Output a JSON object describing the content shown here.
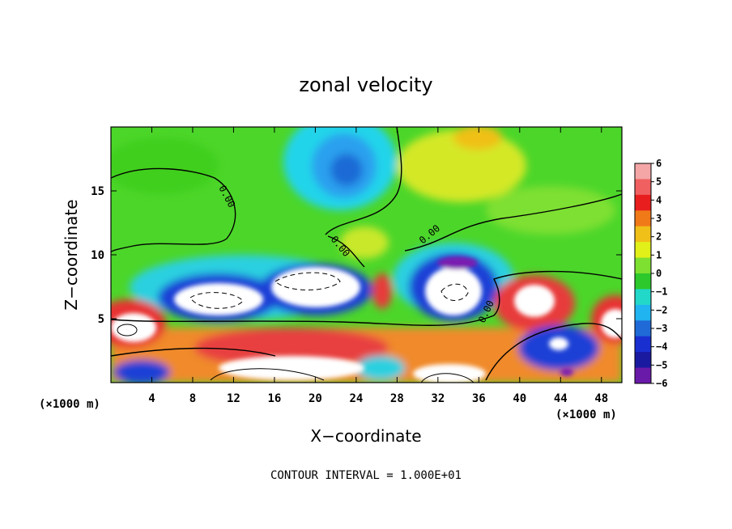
{
  "chart_data": {
    "type": "heatmap",
    "title": "zonal velocity",
    "xlabel": "X−coordinate",
    "ylabel": "Z−coordinate",
    "x_unit_left": "(×1000 m)",
    "x_unit_right": "(×1000 m)",
    "xlim": [
      0,
      50
    ],
    "ylim": [
      0,
      20
    ],
    "x_ticks": [
      4,
      8,
      12,
      16,
      20,
      24,
      28,
      32,
      36,
      40,
      44,
      48
    ],
    "y_ticks": [
      5,
      10,
      15
    ],
    "contour_interval_text": "CONTOUR INTERVAL = 1.000E+01",
    "contour_label": "0.00",
    "colorbar": {
      "ticks": [
        "6",
        "5",
        "4",
        "3",
        "2",
        "1",
        "0",
        "−1",
        "−2",
        "−3",
        "−4",
        "−5",
        "−6"
      ],
      "range": [
        -6,
        6
      ]
    },
    "features": [
      {
        "kind": "core",
        "sign": "negative",
        "x": 12,
        "z": 6.5,
        "note": "strong westward jet (white core, dashed contours)"
      },
      {
        "kind": "core",
        "sign": "negative",
        "x": 21,
        "z": 7.5
      },
      {
        "kind": "core",
        "sign": "negative",
        "x": 34,
        "z": 7
      },
      {
        "kind": "core",
        "sign": "negative",
        "x": 22,
        "z": 16.5
      },
      {
        "kind": "core",
        "sign": "positive",
        "x": 2,
        "z": 4.5
      },
      {
        "kind": "core",
        "sign": "positive",
        "x": 20,
        "z": 1.5
      },
      {
        "kind": "core",
        "sign": "positive",
        "x": 43,
        "z": 7
      },
      {
        "kind": "core",
        "sign": "positive",
        "x": 49,
        "z": 4.5
      },
      {
        "kind": "core",
        "sign": "positive",
        "x": 26,
        "z": 7.5
      }
    ]
  }
}
